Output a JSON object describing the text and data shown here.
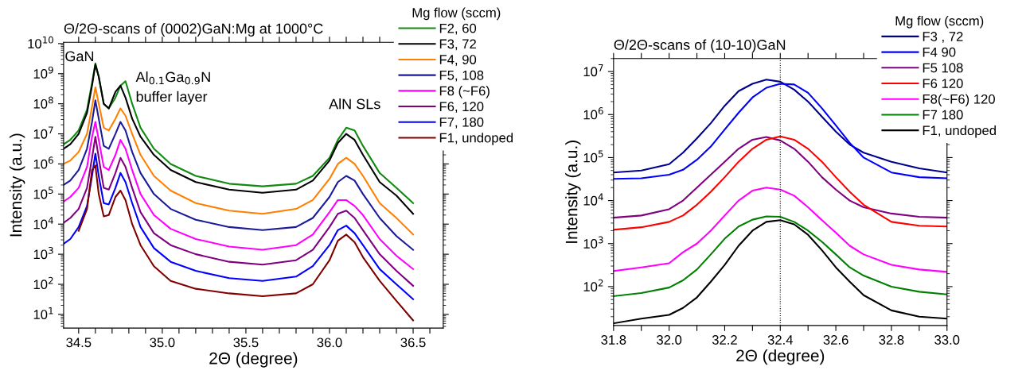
{
  "chart_data": [
    {
      "type": "line",
      "title": "Θ/2Θ-scans of (0002)GaN:Mg at 1000°C",
      "xlabel": "2Θ (degree)",
      "ylabel": "Intensity (a.u.)",
      "legend_title": "Mg flow (sccm)",
      "legend": "top right",
      "log": "y",
      "grid": false,
      "marker": "none",
      "line_style": "solid",
      "xlim": [
        34.41,
        36.68
      ],
      "ylim": [
        3.5,
        11000000000.0
      ],
      "xticks": [
        34.5,
        {
          "value": 34.6,
          "label": null
        },
        {
          "value": 34.7,
          "label": null
        },
        {
          "value": 34.8,
          "label": null
        },
        {
          "value": 34.9,
          "label": null
        },
        {
          "value": 35.0,
          "label": "35.0"
        },
        {
          "value": 35.1,
          "label": null
        },
        {
          "value": 35.2,
          "label": null
        },
        {
          "value": 35.3,
          "label": null
        },
        {
          "value": 35.4,
          "label": null
        },
        35.5,
        {
          "value": 35.6,
          "label": null
        },
        {
          "value": 35.7,
          "label": null
        },
        {
          "value": 35.8,
          "label": null
        },
        {
          "value": 35.9,
          "label": null
        },
        {
          "value": 36.0,
          "label": "36.0"
        },
        {
          "value": 36.1,
          "label": null
        },
        {
          "value": 36.2,
          "label": null
        },
        {
          "value": 36.3,
          "label": null
        },
        {
          "value": 36.4,
          "label": null
        },
        36.5,
        {
          "value": 36.6,
          "label": null
        }
      ],
      "yticks": [
        {
          "value": 10,
          "label": "10$^{1}$"
        },
        {
          "value": 100,
          "label": "10$^{2}$"
        },
        {
          "value": 1000,
          "label": "10$^{3}$"
        },
        {
          "value": 10000,
          "label": "10$^{4}$"
        },
        {
          "value": 100000,
          "label": "10$^{5}$"
        },
        {
          "value": 1000000,
          "label": "10$^{6}$"
        },
        {
          "value": 10000000,
          "label": "10$^{7}$"
        },
        {
          "value": 100000000,
          "label": "10$^{8}$"
        },
        {
          "value": 1000000000,
          "label": "10$^{9}$"
        },
        {
          "value": 10000000000,
          "label": "10$^{10}$"
        }
      ],
      "annotations": [
        "GaN",
        "Al$_{0.1}$Ga$_{0.9}$N\nbuffer layer",
        "AlN SLs"
      ],
      "x": [
        34.41,
        34.45,
        34.5,
        34.55,
        34.58,
        34.6,
        34.62,
        34.65,
        34.68,
        34.72,
        34.75,
        34.78,
        34.82,
        34.87,
        34.95,
        35.05,
        35.2,
        35.4,
        35.6,
        35.8,
        35.9,
        36.0,
        36.05,
        36.1,
        36.15,
        36.2,
        36.3,
        36.4,
        36.5
      ],
      "series": [
        {
          "name": "F2, 60",
          "color": "#108a10",
          "values": [
            4500000.0,
            6300000.0,
            13000000.0,
            63000000.0,
            500000000.0,
            2200000000.0,
            800000000.0,
            100000000.0,
            70000000.0,
            160000000.0,
            400000000.0,
            560000000.0,
            100000000.0,
            16000000.0,
            3200000.0,
            1000000.0,
            400000.0,
            220000.0,
            180000.0,
            220000.0,
            400000.0,
            1600000.0,
            6300000.0,
            16000000.0,
            13000000.0,
            4000000.0,
            500000.0,
            160000.0,
            50000.0
          ]
        },
        {
          "name": "F3, 72",
          "color": "#000000",
          "values": [
            3200000.0,
            4500000.0,
            10000000.0,
            50000000.0,
            400000000.0,
            2000000000.0,
            800000000.0,
            100000000.0,
            70000000.0,
            250000000.0,
            400000000.0,
            160000000.0,
            32000000.0,
            8000000.0,
            2000000.0,
            630000.0,
            250000.0,
            140000.0,
            110000.0,
            140000.0,
            280000.0,
            1300000.0,
            5000000.0,
            10000000.0,
            6300000.0,
            2000000.0,
            250000.0,
            89000.0,
            22000.0
          ]
        },
        {
          "name": "F4, 90",
          "color": "#ff8000",
          "values": [
            1000000.0,
            1300000.0,
            2500000.0,
            10000000.0,
            80000000.0,
            350000000.0,
            100000000.0,
            16000000.0,
            13000000.0,
            32000000.0,
            70000000.0,
            40000000.0,
            10000000.0,
            2000000.0,
            400000.0,
            130000.0,
            50000.0,
            28000.0,
            22000.0,
            32000.0,
            63000.0,
            320000.0,
            1000000.0,
            1600000.0,
            1000000.0,
            400000.0,
            50000.0,
            16000.0,
            4500.0
          ]
        },
        {
          "name": "F5, 108",
          "color": "#1a1a9a",
          "values": [
            200000.0,
            280000.0,
            630000.0,
            3200000.0,
            25000000.0,
            130000000.0,
            32000000.0,
            4000000.0,
            3200000.0,
            10000000.0,
            25000000.0,
            13000000.0,
            2500000.0,
            500000.0,
            100000.0,
            32000.0,
            14000.0,
            8000.0,
            6300.0,
            8000.0,
            16000.0,
            80000.0,
            250000.0,
            400000.0,
            280000.0,
            100000.0,
            16000.0,
            4000.0,
            1400.0
          ]
        },
        {
          "name": "F8 (~F6)",
          "color": "#ff00ff",
          "values": [
            56000.0,
            80000.0,
            160000.0,
            800000.0,
            8000000.0,
            25000000.0,
            6300000.0,
            800000.0,
            630000.0,
            2000000.0,
            6300000.0,
            3200000.0,
            630000.0,
            100000.0,
            20000.0,
            7000.0,
            3200.0,
            1800.0,
            1400.0,
            2000.0,
            4500.0,
            25000.0,
            63000.0,
            63000.0,
            40000.0,
            20000.0,
            3200.0,
            890.0,
            320.0
          ]
        },
        {
          "name": "F6, 120",
          "color": "#800080",
          "values": [
            11000.0,
            16000.0,
            32000.0,
            160000.0,
            1600000.0,
            8000000.0,
            1600000.0,
            160000.0,
            140000.0,
            500000.0,
            1600000.0,
            800000.0,
            160000.0,
            25000.0,
            5000.0,
            2000.0,
            1000.0,
            560.0,
            450.0,
            630.0,
            1400.0,
            8000.0,
            22000.0,
            28000.0,
            16000.0,
            6300.0,
            1000.0,
            280.0,
            89
          ]
        },
        {
          "name": "F7, 180",
          "color": "#0000ff",
          "values": [
            2200.0,
            3200.0,
            8000.0,
            40000.0,
            400000.0,
            2200000.0,
            400000.0,
            50000.0,
            45000.0,
            160000.0,
            500000.0,
            250000.0,
            50000.0,
            8000.0,
            1600.0,
            560.0,
            280.0,
            160.0,
            130.0,
            180.0,
            400.0,
            2000.0,
            6300.0,
            8900.0,
            5000.0,
            2000.0,
            320.0,
            100.0,
            32
          ]
        },
        {
          "name": "F1, undoped",
          "color": "#800000",
          "values": [
            null,
            null,
            6000.0,
            32000.0,
            630000.0,
            890000.0,
            100000.0,
            18000.0,
            20000.0,
            80000.0,
            130000.0,
            63000.0,
            10000.0,
            2000.0,
            400.0,
            130.0,
            71,
            50,
            40,
            50,
            100,
            630.0,
            2800.0,
            4500.0,
            2500.0,
            800.0,
            130.0,
            28,
            6.3
          ]
        }
      ]
    },
    {
      "type": "line",
      "title": "Θ/2Θ-scans of (10-10)GaN",
      "xlabel": "2Θ (degree)",
      "ylabel": "Intensity (a.u.)",
      "legend_title": "Mg flow (sccm)",
      "legend": "top right",
      "log": "y",
      "grid": false,
      "marker": "none",
      "line_style": "solid",
      "xlim": [
        31.8,
        33.0
      ],
      "ylim": [
        12.5,
        20000000.0
      ],
      "xticks": [
        31.8,
        {
          "value": 31.9,
          "label": null
        },
        {
          "value": 32.0,
          "label": "32.0"
        },
        {
          "value": 32.1,
          "label": null
        },
        32.2,
        {
          "value": 32.3,
          "label": null
        },
        32.4,
        {
          "value": 32.5,
          "label": null
        },
        32.6,
        {
          "value": 32.7,
          "label": null
        },
        32.8,
        {
          "value": 32.9,
          "label": null
        },
        {
          "value": 33.0,
          "label": "33.0"
        }
      ],
      "yticks": [
        {
          "value": 100,
          "label": "10$^{2}$"
        },
        {
          "value": 1000,
          "label": "10$^{3}$"
        },
        {
          "value": 10000,
          "label": "10$^{4}$"
        },
        {
          "value": 100000,
          "label": "10$^{5}$"
        },
        {
          "value": 1000000,
          "label": "10$^{6}$"
        },
        {
          "value": 10000000,
          "label": "10$^{7}$"
        }
      ],
      "ref_lines": [
        {
          "axis": "x",
          "value": 32.4,
          "color": "#000000",
          "line_style": "dotted"
        }
      ],
      "x": [
        31.8,
        31.9,
        32.0,
        32.05,
        32.1,
        32.15,
        32.2,
        32.25,
        32.3,
        32.35,
        32.4,
        32.45,
        32.5,
        32.55,
        32.6,
        32.65,
        32.7,
        32.8,
        32.9,
        33.0
      ],
      "series": [
        {
          "name": "F3 , 72",
          "color": "#00008b",
          "values": [
            45000.0,
            50000.0,
            70000.0,
            130000.0,
            280000.0,
            630000.0,
            1600000.0,
            3500000.0,
            5200000.0,
            6500000.0,
            5800000.0,
            3800000.0,
            2000000.0,
            890000.0,
            400000.0,
            200000.0,
            130000.0,
            80000.0,
            56000.0,
            45000.0
          ]
        },
        {
          "name": "F4 90",
          "color": "#0000ff",
          "values": [
            32000.0,
            33000.0,
            40000.0,
            52000.0,
            89000.0,
            180000.0,
            450000.0,
            1100000.0,
            2500000.0,
            4200000.0,
            5200000.0,
            5000000.0,
            3200000.0,
            1400000.0,
            560000.0,
            220000.0,
            100000.0,
            45000.0,
            35000.0,
            33000.0
          ]
        },
        {
          "name": "F5 108",
          "color": "#800080",
          "values": [
            4000.0,
            4500.0,
            6300.0,
            10000.0,
            20000.0,
            40000.0,
            80000.0,
            160000.0,
            260000.0,
            300000.0,
            250000.0,
            160000.0,
            80000.0,
            35000.0,
            18000.0,
            10000.0,
            7000.0,
            5000.0,
            4200.0,
            4000.0
          ]
        },
        {
          "name": "F6 120",
          "color": "#ff0000",
          "values": [
            2100.0,
            2400.0,
            3200.0,
            4500.0,
            8000.0,
            16000.0,
            35000.0,
            80000.0,
            160000.0,
            260000.0,
            310000.0,
            260000.0,
            160000.0,
            80000.0,
            35000.0,
            16000.0,
            8000.0,
            3200.0,
            2600.0,
            2500.0
          ]
        },
        {
          "name": "F8(~F6) 120",
          "color": "#ff00ff",
          "values": [
            230.0,
            280.0,
            350.0,
            630.0,
            1000.0,
            2000.0,
            4500.0,
            10000.0,
            17000.0,
            20000.0,
            18000.0,
            13000.0,
            7000.0,
            3500.0,
            1800.0,
            890.0,
            560.0,
            320.0,
            250.0,
            220.0
          ]
        },
        {
          "name": "F7 180",
          "color": "#008000",
          "values": [
            60,
            71,
            95,
            140.0,
            250.0,
            560.0,
            1300.0,
            2500.0,
            3600.0,
            4300.0,
            4200.0,
            3200.0,
            2000.0,
            1100.0,
            560.0,
            280.0,
            180.0,
            100.0,
            76,
            66
          ]
        },
        {
          "name": "F1, undoped",
          "color": "#000000",
          "values": [
            14,
            18,
            22,
            32,
            56,
            130.0,
            320.0,
            890.0,
            2000.0,
            3200.0,
            3500.0,
            2800.0,
            1600.0,
            700.0,
            280.0,
            130.0,
            63,
            28,
            20,
            18
          ]
        }
      ]
    }
  ]
}
